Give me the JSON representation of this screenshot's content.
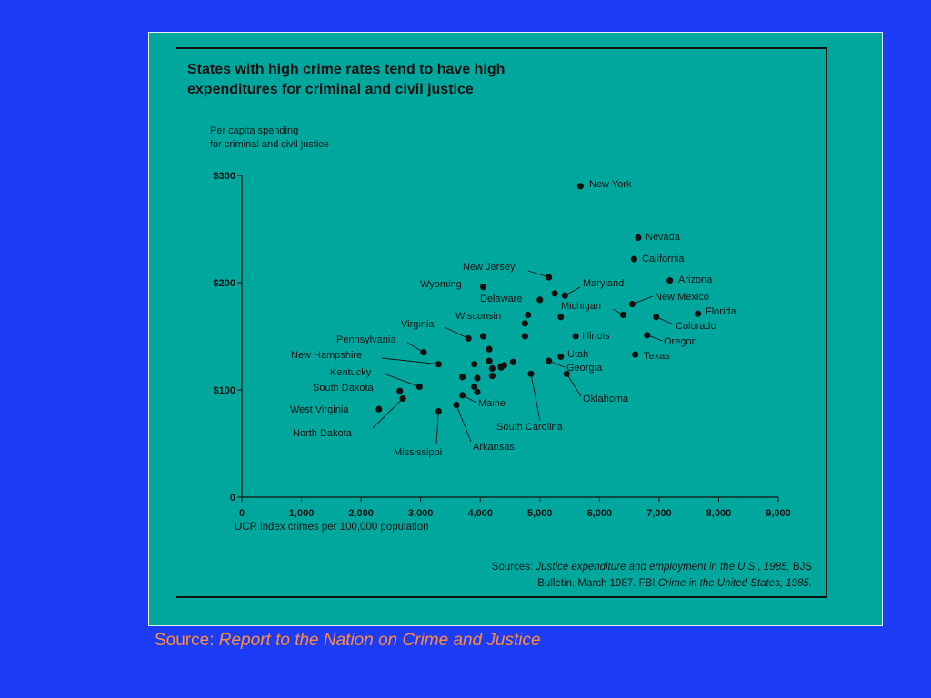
{
  "slide_source": {
    "prefix": "Source: ",
    "title": "Report to the Nation on Crime and Justice"
  },
  "chart_sources": {
    "line1_prefix": "Sources: ",
    "line1_italic": "Justice expenditure and employment in the U.S., 1985,",
    "line1_suffix": " BJS",
    "line2_prefix": "Bulletin, March 1987. FBI ",
    "line2_italic": "Crime in the United States, 1985."
  },
  "colors": {
    "background": "#1d3cf5",
    "panel": "#00a79d",
    "ink": "#111111",
    "source_text": "#ff8c3a"
  },
  "chart_data": {
    "type": "scatter",
    "title": [
      "States with high crime rates tend to have high",
      "expenditures for criminal and civil justice"
    ],
    "ylabel": [
      "Per capita spending",
      "for criminal and civil justice"
    ],
    "xlabel": "UCR index crimes per 100,000 population",
    "xlim": [
      0,
      9000
    ],
    "ylim": [
      0,
      300
    ],
    "x_ticks": [
      0,
      1000,
      2000,
      3000,
      4000,
      5000,
      6000,
      7000,
      8000,
      9000
    ],
    "x_tick_labels": [
      "0",
      "1,000",
      "2,000",
      "3,000",
      "4,000",
      "5,000",
      "6,000",
      "7,000",
      "8,000",
      "9,000"
    ],
    "y_ticks": [
      0,
      100,
      200,
      300
    ],
    "y_tick_labels": [
      "0",
      "$100",
      "$200",
      "$300"
    ],
    "grid": false,
    "points": [
      {
        "label": "New York",
        "x": 5680,
        "y": 290
      },
      {
        "label": "Nevada",
        "x": 6650,
        "y": 242
      },
      {
        "label": "California",
        "x": 6580,
        "y": 222
      },
      {
        "label": "Arizona",
        "x": 7180,
        "y": 202
      },
      {
        "label": "New Jersey",
        "x": 5150,
        "y": 205
      },
      {
        "label": "Maryland",
        "x": 5420,
        "y": 188
      },
      {
        "label": "New Mexico",
        "x": 6550,
        "y": 180
      },
      {
        "label": "Michigan",
        "x": 6400,
        "y": 170
      },
      {
        "label": "Florida",
        "x": 7650,
        "y": 171
      },
      {
        "label": "Colorado",
        "x": 6950,
        "y": 168
      },
      {
        "label": "Oregon",
        "x": 6800,
        "y": 151
      },
      {
        "label": "Illinois",
        "x": 5600,
        "y": 150
      },
      {
        "label": "Texas",
        "x": 6600,
        "y": 133
      },
      {
        "label": "Utah",
        "x": 5350,
        "y": 131
      },
      {
        "label": "Georgia",
        "x": 5150,
        "y": 127
      },
      {
        "label": "Oklahoma",
        "x": 5450,
        "y": 115
      },
      {
        "label": "Wyoming",
        "x": 4050,
        "y": 196
      },
      {
        "label": "Delaware",
        "x": 5000,
        "y": 184
      },
      {
        "label": "Wisconsin",
        "x": 4800,
        "y": 170
      },
      {
        "label": "Virginia",
        "x": 3800,
        "y": 148
      },
      {
        "label": "Pennsylvania",
        "x": 3050,
        "y": 135
      },
      {
        "label": "New Hampshire",
        "x": 3300,
        "y": 124
      },
      {
        "label": "Kentucky",
        "x": 2980,
        "y": 103
      },
      {
        "label": "South Dakota",
        "x": 2650,
        "y": 99
      },
      {
        "label": "West Virginia",
        "x": 2300,
        "y": 82
      },
      {
        "label": "North Dakota",
        "x": 2700,
        "y": 92
      },
      {
        "label": "Mississippi",
        "x": 3300,
        "y": 80
      },
      {
        "label": "Arkansas",
        "x": 3600,
        "y": 86
      },
      {
        "label": "Maine",
        "x": 3700,
        "y": 95
      },
      {
        "label": "South Carolina",
        "x": 4850,
        "y": 115
      },
      {
        "label": "",
        "x": 5250,
        "y": 190
      },
      {
        "label": "",
        "x": 5350,
        "y": 168
      },
      {
        "label": "",
        "x": 4750,
        "y": 162
      },
      {
        "label": "",
        "x": 4750,
        "y": 150
      },
      {
        "label": "",
        "x": 4050,
        "y": 150
      },
      {
        "label": "",
        "x": 4150,
        "y": 138
      },
      {
        "label": "",
        "x": 4150,
        "y": 127
      },
      {
        "label": "",
        "x": 3900,
        "y": 124
      },
      {
        "label": "",
        "x": 4200,
        "y": 120
      },
      {
        "label": "",
        "x": 4350,
        "y": 122
      },
      {
        "label": "",
        "x": 4400,
        "y": 123
      },
      {
        "label": "",
        "x": 4550,
        "y": 126
      },
      {
        "label": "",
        "x": 4200,
        "y": 113
      },
      {
        "label": "",
        "x": 3950,
        "y": 111
      },
      {
        "label": "",
        "x": 3700,
        "y": 112
      },
      {
        "label": "",
        "x": 3900,
        "y": 103
      },
      {
        "label": "",
        "x": 3950,
        "y": 98
      },
      {
        "label": "",
        "x": 4350,
        "y": 121
      }
    ]
  }
}
